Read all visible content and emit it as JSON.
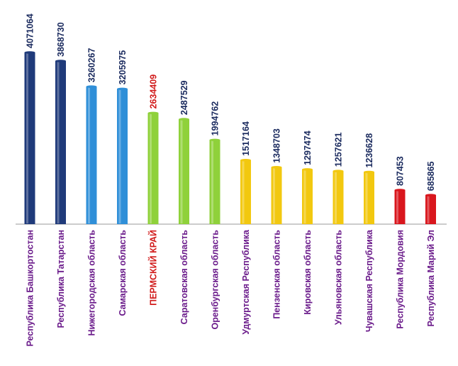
{
  "chart_data": {
    "type": "bar",
    "title": "",
    "xlabel": "",
    "ylabel": "",
    "ylim": [
      0,
      4300000
    ],
    "grid": false,
    "legend": "none",
    "categories": [
      "Республика Башкортостан",
      "Республика Татарстан",
      "Нижегородская область",
      "Самарская область",
      "ПЕРМСКИЙ КРАЙ",
      "Саратовская область",
      "Оренбургская область",
      "Удмуртская Республика",
      "Пензенская область",
      "Кировская область",
      "Ульяновская область",
      "Чувашская Республика",
      "Республика Мордовия",
      "Республика Марий Эл"
    ],
    "values": [
      4071064,
      3868730,
      3260267,
      3205975,
      2634409,
      2487529,
      1994762,
      1517164,
      1348703,
      1297474,
      1257621,
      1236628,
      807453,
      685865
    ],
    "value_labels": [
      "4071064",
      "3868730",
      "3260267",
      "3205975",
      "2634409",
      "2487529",
      "1994762",
      "1517164",
      "1348703",
      "1297474",
      "1257621",
      "1236628",
      "807453",
      "685865"
    ],
    "bar_colors": [
      "#1f3a7a",
      "#1f3a7a",
      "#2f8fd8",
      "#2f8fd8",
      "#8fd13a",
      "#8fd13a",
      "#8fd13a",
      "#f2c80f",
      "#f2c80f",
      "#f2c80f",
      "#f2c80f",
      "#f2c80f",
      "#d9161d",
      "#d9161d"
    ],
    "label_colors": [
      "#1a2a5e",
      "#1a2a5e",
      "#1a2a5e",
      "#1a2a5e",
      "#d11a1a",
      "#1a2a5e",
      "#1a2a5e",
      "#1a2a5e",
      "#1a2a5e",
      "#1a2a5e",
      "#1a2a5e",
      "#1a2a5e",
      "#1a2a5e",
      "#1a2a5e"
    ],
    "category_label_color": "#6a1a8a",
    "highlight_category_color": "#d11a1a",
    "highlight_index": 4
  }
}
